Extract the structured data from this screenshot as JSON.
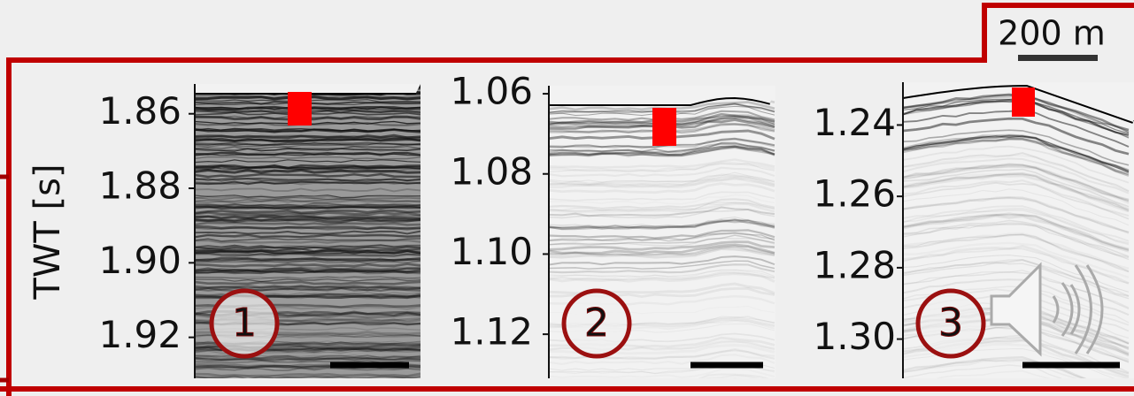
{
  "scale_bar": {
    "label": "200 m"
  },
  "chart_data": [
    {
      "type": "seismic",
      "panel_label": "1",
      "ylabel": "TWT [s]",
      "ylim": [
        1.852,
        1.931
      ],
      "y_inverted": true,
      "yticks": [
        1.86,
        1.88,
        {
          "value": 1.9,
          "label": "1.90"
        },
        1.92
      ]
    },
    {
      "type": "seismic",
      "panel_label": "2",
      "ylim": [
        1.058,
        1.131
      ],
      "y_inverted": true,
      "yticks": [
        1.06,
        1.08,
        {
          "value": 1.1,
          "label": "1.10"
        },
        1.12
      ]
    },
    {
      "type": "seismic",
      "panel_label": "3",
      "ylim": [
        1.228,
        1.311
      ],
      "y_inverted": true,
      "yticks": [
        1.24,
        1.26,
        1.28,
        {
          "value": 1.3,
          "label": "1.30"
        }
      ]
    }
  ]
}
